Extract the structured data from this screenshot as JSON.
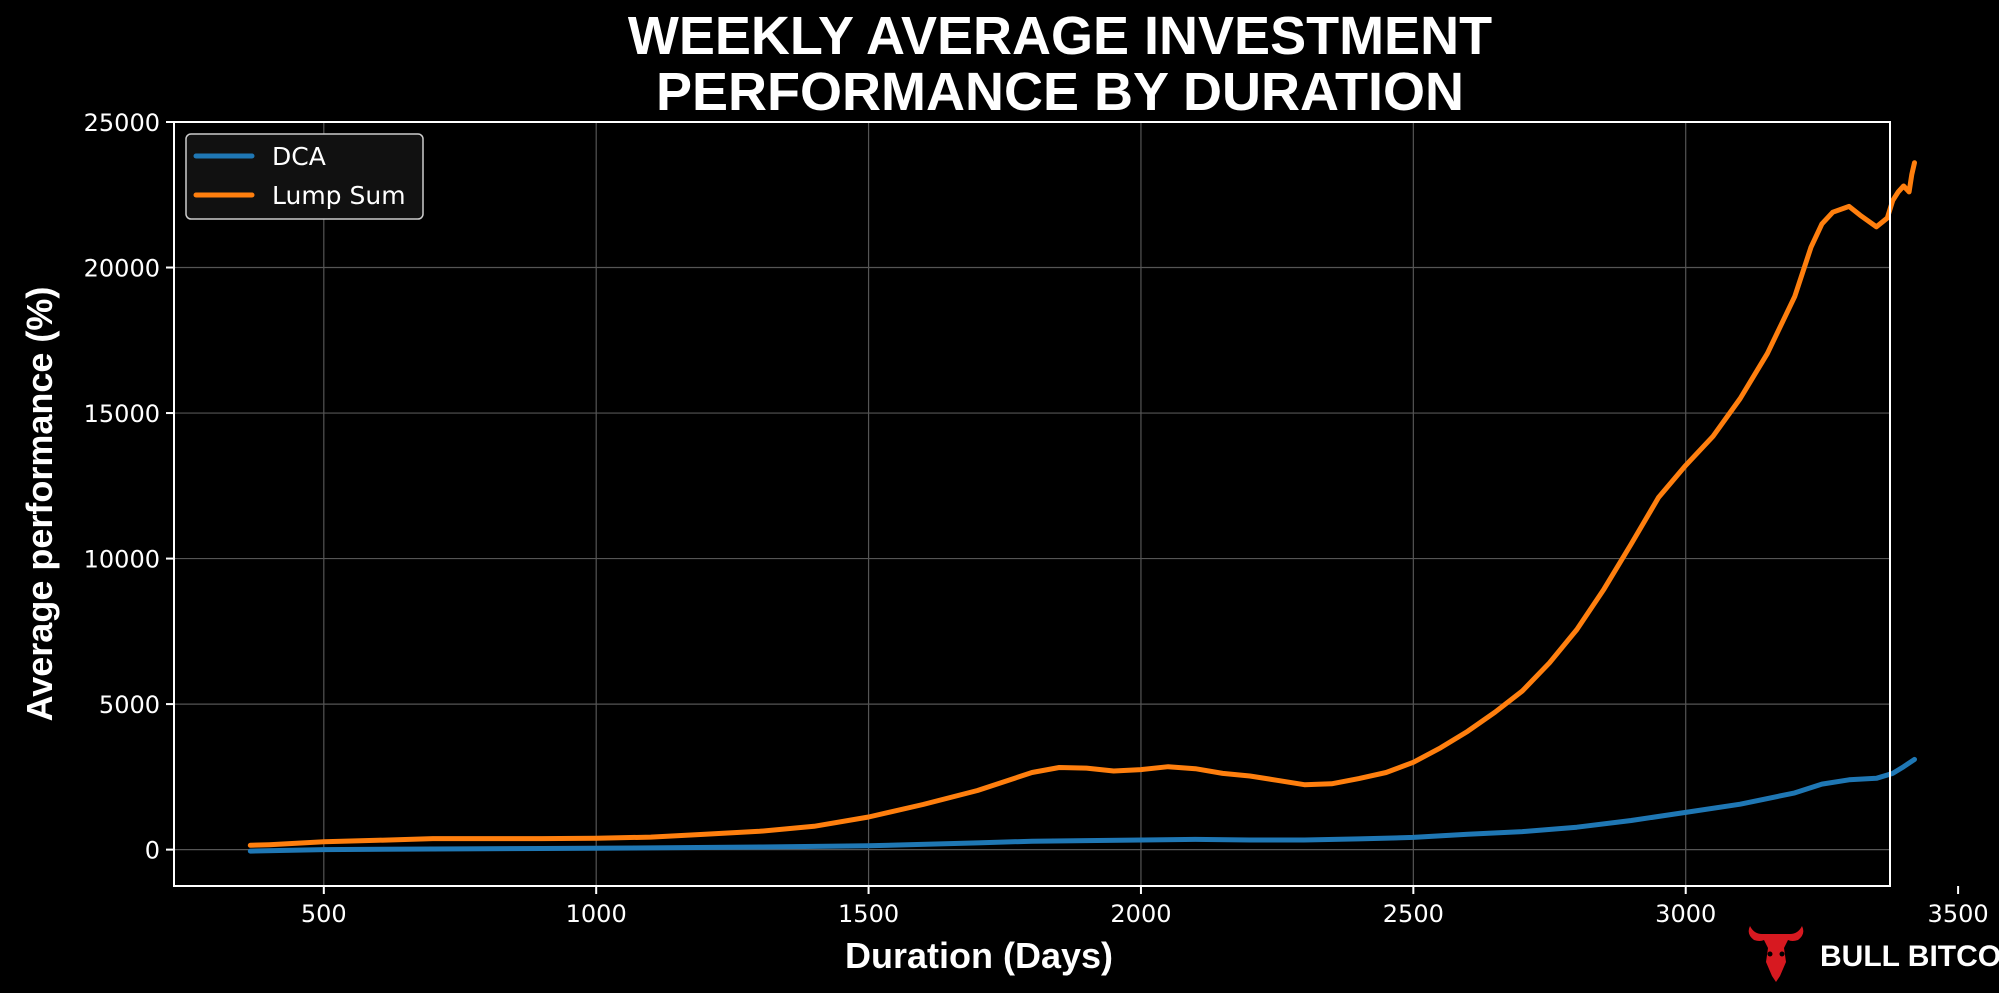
{
  "colors": {
    "background": "#000000",
    "dca": "#1f77b4",
    "lump_sum": "#ff7f0e",
    "grid": "#555555",
    "logo": "#d71920"
  },
  "branding": {
    "logo_icon": "bull-head-icon",
    "text": "BULL BITCOIN"
  },
  "chart_data": {
    "type": "line",
    "title": "WEEKLY AVERAGE INVESTMENT PERFORMANCE BY DURATION",
    "title_lines": [
      "WEEKLY AVERAGE INVESTMENT",
      "PERFORMANCE BY DURATION"
    ],
    "xlabel": "Duration (Days)",
    "ylabel": "Average performance (%)",
    "xlim": [
      225,
      3375
    ],
    "ylim": [
      -1250,
      25000
    ],
    "xticks": [
      500,
      1000,
      1500,
      2000,
      2500,
      3000,
      3500
    ],
    "xtick_labels": [
      "500",
      "1000",
      "1500",
      "2000",
      "2500",
      "3000",
      "3500"
    ],
    "yticks": [
      0,
      5000,
      10000,
      15000,
      20000,
      25000
    ],
    "ytick_labels": [
      "0",
      "5000",
      "10000",
      "15000",
      "20000",
      "25000"
    ],
    "grid": true,
    "legend_position": "top-left",
    "series": [
      {
        "name": "DCA",
        "color": "#1f77b4",
        "x": [
          365,
          500,
          700,
          900,
          1100,
          1300,
          1500,
          1700,
          1800,
          2000,
          2100,
          2200,
          2300,
          2400,
          2500,
          2600,
          2700,
          2800,
          2900,
          3000,
          3100,
          3200,
          3250,
          3300,
          3350,
          3380,
          3400,
          3420
        ],
        "y": [
          -50,
          0,
          20,
          40,
          60,
          90,
          130,
          230,
          290,
          330,
          350,
          330,
          330,
          370,
          420,
          530,
          620,
          770,
          1000,
          1280,
          1560,
          1950,
          2250,
          2400,
          2450,
          2620,
          2850,
          3100
        ]
      },
      {
        "name": "Lump Sum",
        "color": "#ff7f0e",
        "x": [
          365,
          400,
          500,
          600,
          700,
          800,
          900,
          1000,
          1100,
          1200,
          1300,
          1400,
          1500,
          1600,
          1700,
          1800,
          1850,
          1900,
          1950,
          2000,
          2050,
          2100,
          2150,
          2200,
          2250,
          2300,
          2350,
          2400,
          2450,
          2500,
          2550,
          2600,
          2650,
          2700,
          2750,
          2800,
          2850,
          2900,
          2950,
          3000,
          3050,
          3100,
          3150,
          3200,
          3230,
          3250,
          3270,
          3300,
          3320,
          3350,
          3370,
          3380,
          3390,
          3400,
          3410,
          3415,
          3420
        ],
        "y": [
          150,
          170,
          270,
          320,
          380,
          380,
          380,
          390,
          430,
          530,
          630,
          800,
          1120,
          1550,
          2030,
          2650,
          2820,
          2800,
          2700,
          2750,
          2850,
          2780,
          2620,
          2530,
          2380,
          2230,
          2260,
          2440,
          2650,
          3000,
          3500,
          4070,
          4720,
          5450,
          6420,
          7560,
          8950,
          10500,
          12100,
          13200,
          14200,
          15500,
          17050,
          19000,
          20700,
          21500,
          21900,
          22100,
          21800,
          21400,
          21700,
          22300,
          22600,
          22800,
          22600,
          23200,
          23600
        ]
      }
    ]
  }
}
